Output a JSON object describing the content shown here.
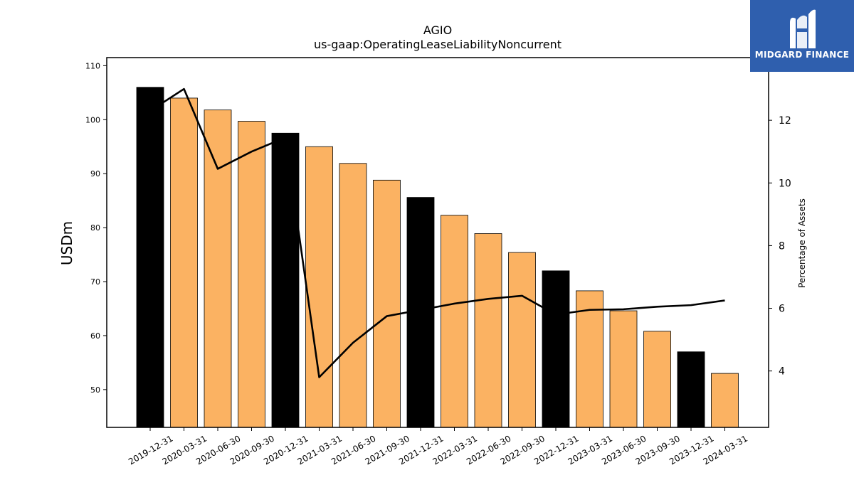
{
  "chart_data": {
    "type": "bar",
    "title": "AGIO",
    "subtitle": "us-gaap:OperatingLeaseLiabilityNoncurrent",
    "ylabel": "USDm",
    "y2label": "Percentage of Assets",
    "categories": [
      "2019-12-31",
      "2020-03-31",
      "2020-06-30",
      "2020-09-30",
      "2020-12-31",
      "2021-03-31",
      "2021-06-30",
      "2021-09-30",
      "2021-12-31",
      "2022-03-31",
      "2022-06-30",
      "2022-09-30",
      "2022-12-31",
      "2023-03-31",
      "2023-06-30",
      "2023-09-30",
      "2023-12-31",
      "2024-03-31"
    ],
    "series": [
      {
        "values": [
          106.0,
          104.0,
          101.8,
          99.7,
          97.5,
          95.0,
          91.9,
          88.8,
          85.6,
          82.3,
          78.9,
          75.4,
          72.0,
          68.3,
          64.6,
          60.8,
          57.0,
          53.0
        ]
      },
      {
        "values": [
          12.3,
          13.0,
          10.45,
          11.0,
          11.45,
          3.8,
          4.9,
          5.75,
          5.95,
          6.15,
          6.3,
          6.4,
          5.8,
          5.95,
          5.97,
          6.05,
          6.1,
          6.25
        ]
      }
    ],
    "bar_colors": [
      "#000000",
      "#fbb262",
      "#fbb262",
      "#fbb262",
      "#000000",
      "#fbb262",
      "#fbb262",
      "#fbb262",
      "#000000",
      "#fbb262",
      "#fbb262",
      "#fbb262",
      "#000000",
      "#fbb262",
      "#fbb262",
      "#fbb262",
      "#000000",
      "#fbb262"
    ],
    "line_color": "#000000",
    "ylim": [
      43,
      111.5
    ],
    "yticks": [
      50,
      60,
      70,
      80,
      90,
      100,
      110
    ],
    "y2lim": [
      2.2,
      14.0
    ],
    "y2ticks": [
      4,
      6,
      8,
      10,
      12
    ],
    "grid": false
  },
  "logo": {
    "text": "MIDGARD FINANCE",
    "color": "#2f5fae"
  }
}
